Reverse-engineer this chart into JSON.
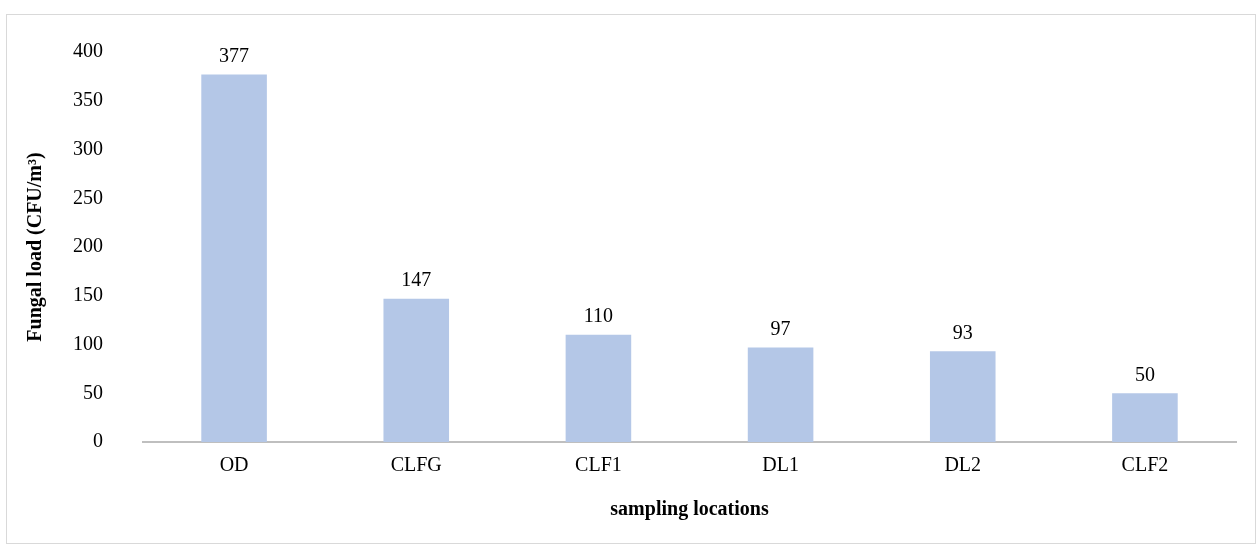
{
  "chart_data": {
    "type": "bar",
    "xlabel": "sampling locations",
    "ylabel": "Fungal load (CFU/m³)",
    "categories": [
      "OD",
      "CLFG",
      "CLF1",
      "DL1",
      "DL2",
      "CLF2"
    ],
    "values": [
      377,
      147,
      110,
      97,
      93,
      50
    ],
    "color": "#b4c7e7",
    "ylim": [
      0,
      400
    ],
    "yticks": [
      0,
      50,
      100,
      150,
      200,
      250,
      300,
      350,
      400
    ],
    "grid": false,
    "legend": false,
    "data_labels": true
  }
}
